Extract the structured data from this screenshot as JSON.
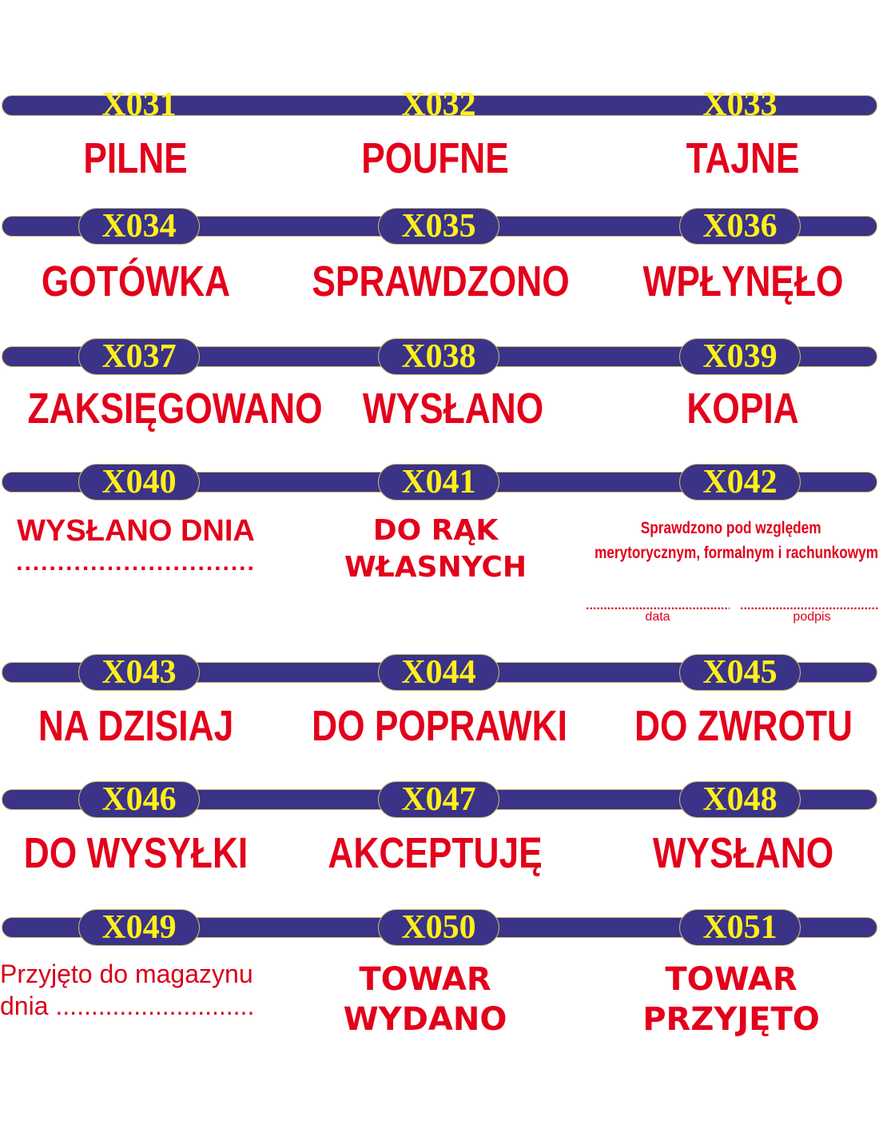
{
  "colors": {
    "bar": "#3a3387",
    "code": "#ffef1a",
    "text": "#e3001b"
  },
  "rows": [
    {
      "cells": [
        {
          "code": "X031",
          "lines": [
            "PILNE"
          ]
        },
        {
          "code": "X032",
          "lines": [
            "POUFNE"
          ]
        },
        {
          "code": "X033",
          "lines": [
            "TAJNE"
          ]
        }
      ]
    },
    {
      "cells": [
        {
          "code": "X034",
          "lines": [
            "GOTÓWKA"
          ]
        },
        {
          "code": "X035",
          "lines": [
            "SPRAWDZONO"
          ]
        },
        {
          "code": "X036",
          "lines": [
            "WPŁYNĘŁO"
          ]
        }
      ]
    },
    {
      "cells": [
        {
          "code": "X037",
          "lines": [
            "ZAKSIĘGOWANO"
          ]
        },
        {
          "code": "X038",
          "lines": [
            "WYSŁANO"
          ]
        },
        {
          "code": "X039",
          "lines": [
            "KOPIA"
          ]
        }
      ]
    },
    {
      "cells": [
        {
          "code": "X040",
          "lines": [
            "WYSŁANO DNIA",
            "............................."
          ]
        },
        {
          "code": "X041",
          "lines": [
            "DO RĄK",
            "WŁASNYCH"
          ]
        },
        {
          "code": "X042",
          "lines": [
            "Sprawdzono pod względem",
            "merytorycznym, formalnym i rachunkowym"
          ],
          "signature": {
            "left": "data",
            "right": "podpis"
          }
        }
      ]
    },
    {
      "cells": [
        {
          "code": "X043",
          "lines": [
            "NA DZISIAJ"
          ]
        },
        {
          "code": "X044",
          "lines": [
            "DO POPRAWKI"
          ]
        },
        {
          "code": "X045",
          "lines": [
            "DO ZWROTU"
          ]
        }
      ]
    },
    {
      "cells": [
        {
          "code": "X046",
          "lines": [
            "DO WYSYŁKI"
          ]
        },
        {
          "code": "X047",
          "lines": [
            "AKCEPTUJĘ"
          ]
        },
        {
          "code": "X048",
          "lines": [
            "WYSŁANO"
          ]
        }
      ]
    },
    {
      "cells": [
        {
          "code": "X049",
          "lines": [
            "Przyjęto do magazynu",
            "dnia ............................"
          ]
        },
        {
          "code": "X050",
          "lines": [
            "TOWAR",
            "WYDANO"
          ]
        },
        {
          "code": "X051",
          "lines": [
            "TOWAR",
            "PRZYJĘTO"
          ]
        }
      ]
    }
  ]
}
